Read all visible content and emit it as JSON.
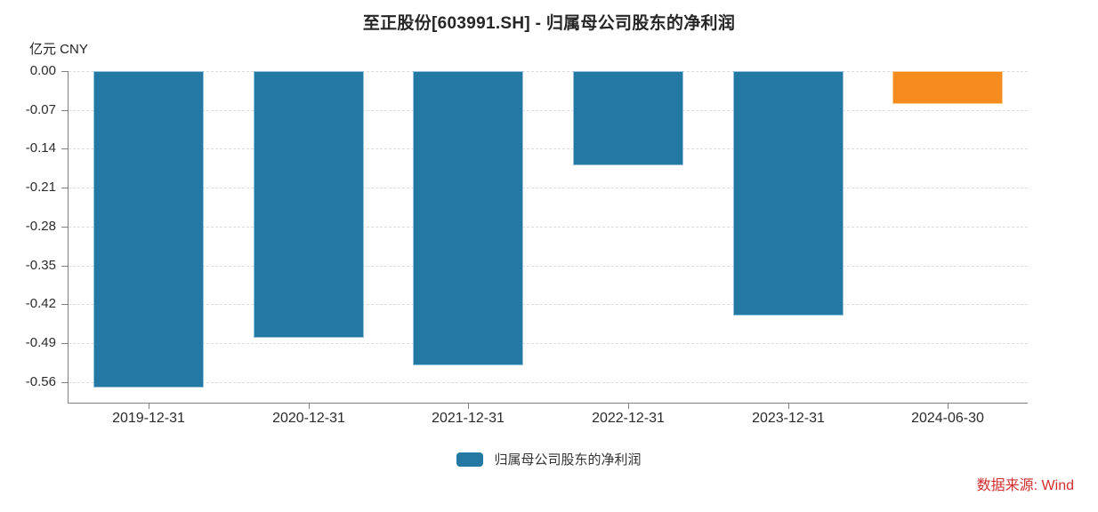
{
  "chart_data": {
    "type": "bar",
    "title": "至正股份[603991.SH] - 归属母公司股东的净利润",
    "unit_label": "亿元  CNY",
    "categories": [
      "2019-12-31",
      "2020-12-31",
      "2021-12-31",
      "2022-12-31",
      "2023-12-31",
      "2024-06-30"
    ],
    "values": [
      -0.57,
      -0.48,
      -0.53,
      -0.17,
      -0.44,
      -0.06
    ],
    "bar_colors": [
      "#2479A4",
      "#2479A4",
      "#2479A4",
      "#2479A4",
      "#2479A4",
      "#F68C1E"
    ],
    "bar_border_colors": [
      "#93C2D8",
      "#93C2D8",
      "#93C2D8",
      "#93C2D8",
      "#93C2D8",
      "#FACD95"
    ],
    "xlabel": "",
    "ylabel": "亿元 CNY",
    "ylim": [
      -0.6,
      0
    ],
    "y_ticks": [
      "0.00",
      "-0.07",
      "-0.14",
      "-0.21",
      "-0.28",
      "-0.35",
      "-0.42",
      "-0.49",
      "-0.56"
    ],
    "grid": "horizontal-dashed",
    "legend_position": "bottom-center"
  },
  "legend": {
    "label": "归属母公司股东的净利润",
    "swatch_color": "#2479A4"
  },
  "source": {
    "text": "数据来源: Wind",
    "color": "#D22E2E"
  }
}
